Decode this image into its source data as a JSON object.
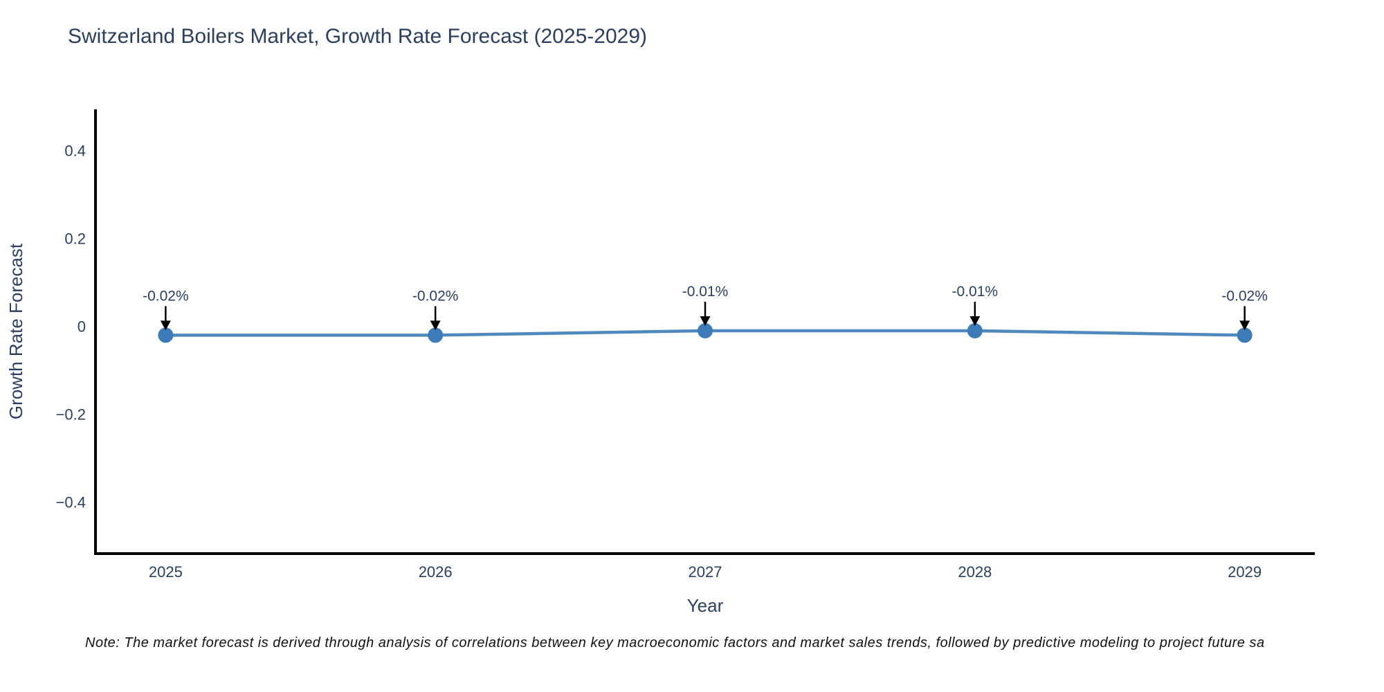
{
  "title": "Switzerland Boilers Market, Growth Rate Forecast (2025-2029)",
  "note": "Note: The market forecast is derived through analysis of correlations between key macroeconomic factors and market sales trends, followed by predictive modeling to project future sa",
  "chart_data": {
    "type": "line",
    "title": "Switzerland Boilers Market, Growth Rate Forecast (2025-2029)",
    "x": [
      2025,
      2026,
      2027,
      2028,
      2029
    ],
    "y": [
      -0.02,
      -0.02,
      -0.01,
      -0.01,
      -0.02
    ],
    "point_labels": [
      "-0.02%",
      "-0.02%",
      "-0.01%",
      "-0.01%",
      "-0.02%"
    ],
    "xlabel": "Year",
    "ylabel": "Growth Rate Forecast",
    "xticks": [
      2025,
      2026,
      2027,
      2028,
      2029
    ],
    "xtick_labels": [
      "2025",
      "2026",
      "2027",
      "2028",
      "2029"
    ],
    "yticks": [
      0.4,
      0.2,
      0,
      -0.2,
      -0.4
    ],
    "ytick_labels": [
      "0.4",
      "0.2",
      "0",
      "−0.2",
      "−0.4"
    ],
    "xlim": [
      2024.74,
      2029.26
    ],
    "ylim": [
      -0.517,
      0.494
    ],
    "grid": false,
    "legend": "none",
    "colors": {
      "line": "#4f89be",
      "marker": "#3d7bb8",
      "axis": "#000000",
      "tick_text": "#2a3f5f",
      "axis_title_text": "#2a3f5f",
      "annotation_text": "#2a3f5f",
      "arrow": "#000000",
      "title_text": "#2a3f5f",
      "note_text": "#111111",
      "background": "#ffffff"
    }
  }
}
